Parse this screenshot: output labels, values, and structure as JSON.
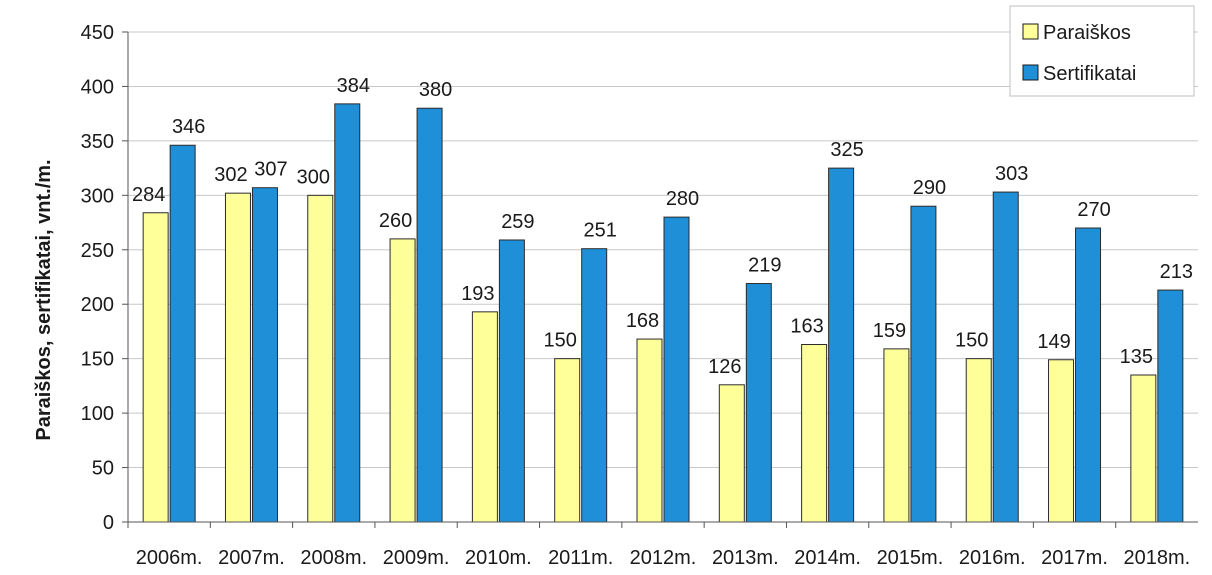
{
  "chart_data": {
    "type": "bar",
    "title": "",
    "xlabel": "",
    "ylabel": "Paraiškos, sertifikatai, vnt./m.",
    "ylim": [
      0,
      450
    ],
    "y_ticks": [
      0,
      50,
      100,
      150,
      200,
      250,
      300,
      350,
      400,
      450
    ],
    "grid": "horizontal",
    "legend_position": "top-right",
    "categories": [
      "2006m.",
      "2007m.",
      "2008m.",
      "2009m.",
      "2010m.",
      "2011m.",
      "2012m.",
      "2013m.",
      "2014m.",
      "2015m.",
      "2016m.",
      "2017m.",
      "2018m."
    ],
    "series": [
      {
        "name": "Paraiškos",
        "color": "#FFFF99",
        "values": [
          284,
          302,
          300,
          260,
          193,
          150,
          168,
          126,
          163,
          159,
          150,
          149,
          135
        ]
      },
      {
        "name": "Sertifikatai",
        "color": "#1F8FD8",
        "values": [
          346,
          307,
          384,
          380,
          259,
          251,
          280,
          219,
          325,
          290,
          303,
          270,
          213
        ]
      }
    ]
  }
}
